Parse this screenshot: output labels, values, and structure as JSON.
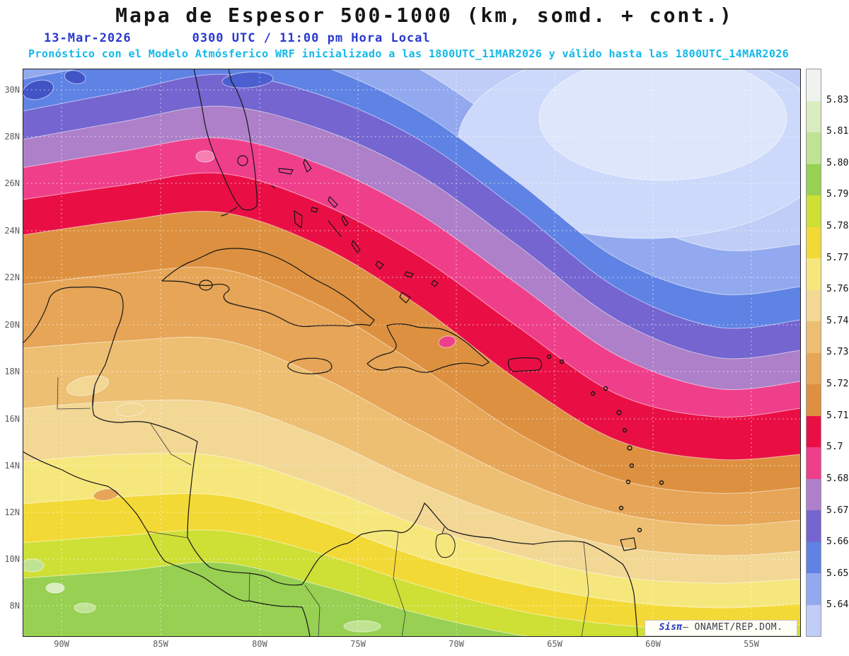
{
  "title": "Mapa de Espesor 500-1000 (km, somd. + cont.)",
  "header": {
    "date": "13-Mar-2026",
    "time": "0300 UTC / 11:00 pm Hora Local",
    "forecast_note": "Pronóstico con el Modelo Atmósferico WRF inicializado a las 1800UTC_11MAR2026 y válido hasta las 1800UTC_14MAR2026"
  },
  "axes": {
    "lat": [
      "30N",
      "28N",
      "26N",
      "24N",
      "22N",
      "20N",
      "18N",
      "16N",
      "14N",
      "12N",
      "10N",
      "8N"
    ],
    "lon": [
      "90W",
      "85W",
      "80W",
      "75W",
      "70W",
      "65W",
      "60W",
      "55W"
    ]
  },
  "colorbar": {
    "levels": [
      "5.831",
      "5.819",
      "5.807",
      "5.795",
      "5.783",
      "5.772",
      "5.76",
      "5.748",
      "5.736",
      "5.724",
      "5.712",
      "5.7",
      "5.688",
      "5.676",
      "5.664",
      "5.652",
      "5.64"
    ],
    "colors": [
      "#eff3ee",
      "#d9edc0",
      "#bfe393",
      "#97d052",
      "#cedf36",
      "#f3d935",
      "#f6e77d",
      "#f2d795",
      "#edbf72",
      "#e6a557",
      "#dd9140",
      "#e90f45",
      "#ef3f8b",
      "#ad80c9",
      "#7465d0",
      "#5f83e4",
      "#93a9ef",
      "#bfcdf7"
    ]
  },
  "attribution": {
    "brand": "Sisπ",
    "text": "– ONAMET/REP.DOM."
  },
  "chart_data": {
    "type": "heatmap",
    "title": "Mapa de Espesor 500-1000 (km, somd. + cont.)",
    "variable": "Espesor 500-1000",
    "units": "km",
    "model": "WRF",
    "initialized": "1800UTC_11MAR2026",
    "valid_until": "1800UTC_14MAR2026",
    "valid_time": "13-Mar-2026 0300 UTC / 11:00 pm Hora Local",
    "x_ticks": [
      "90W",
      "85W",
      "80W",
      "75W",
      "70W",
      "65W",
      "60W",
      "55W"
    ],
    "y_ticks": [
      "30N",
      "28N",
      "26N",
      "24N",
      "22N",
      "20N",
      "18N",
      "16N",
      "14N",
      "12N",
      "10N",
      "8N"
    ],
    "contour_levels_km": [
      5.64,
      5.652,
      5.664,
      5.676,
      5.688,
      5.7,
      5.712,
      5.724,
      5.736,
      5.748,
      5.76,
      5.772,
      5.783,
      5.795,
      5.807,
      5.819,
      5.831
    ],
    "pattern": "Thickness decreases northward: yellow-green/yellow (>5.77 km) across 8N-14N, broad orange belt (5.71-5.76) over the western Caribbean, crimson band (5.70-5.712) arcing from south Florida southeast to ~15N near 60W, pink/purple bands north of it, and a pale-blue minimum (<5.64 km) centered northeast near 28N 62W."
  }
}
